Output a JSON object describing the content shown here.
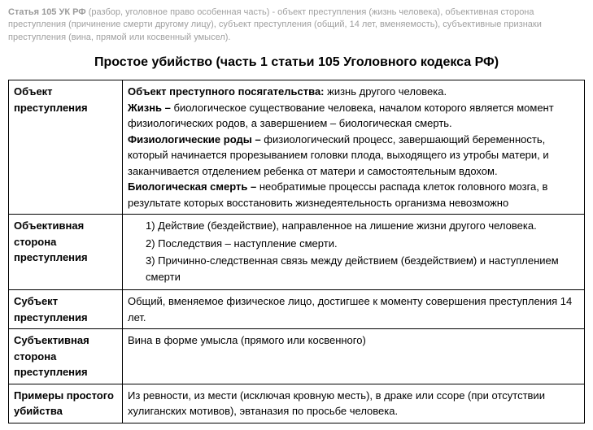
{
  "intro": {
    "lead_bold": "Статья 105 УК РФ",
    "lead_rest": " (разбор, уголовное право особенная часть) - объект преступления (жизнь человека), объективная сторона преступления (причинение смерти другому лицу), субъект преступления (общий, 14 лет, вменяемость), субъективные признаки преступления (вина, прямой или косвенный умысел)."
  },
  "title": "Простое убийство (часть 1 статьи 105 Уголовного кодекса РФ)",
  "rows": [
    {
      "label": "Объект преступления",
      "defs": [
        {
          "term": "Объект преступного посягательства:",
          "text": " жизнь другого человека."
        },
        {
          "term": "Жизнь –",
          "text": " биологическое существование человека, началом которого является момент физиологических родов, а завершением – биологическая смерть."
        },
        {
          "term": "Физиологические роды –",
          "text": " физиологический процесс, завершающий беременность, который начинается прорезыванием головки плода, выходящего из утробы матери, и заканчивается отделением ребенка от матери и самостоятельным вдохом."
        },
        {
          "term": "Биологическая смерть –",
          "text": " необратимые процессы распада клеток головного мозга, в результате которых восстановить жизнедеятельность организма невозможно"
        }
      ]
    },
    {
      "label": "Объективная сторона преступления",
      "list": [
        "Действие (бездействие), направленное на лишение жизни другого человека.",
        "Последствия – наступление смерти.",
        "Причинно-следственная связь между действием (бездействием) и наступлением смерти"
      ]
    },
    {
      "label": "Субъект преступления",
      "plain": "Общий, вменяемое физическое лицо, достигшее к моменту совершения преступления 14 лет."
    },
    {
      "label": "Субъективная сторона преступления",
      "plain": "Вина в форме умысла (прямого или косвенного)"
    },
    {
      "label": "Примеры простого убийства",
      "plain": "Из ревности, из мести (исключая кровную месть), в драке или ссоре (при отсутствии хулиганских мотивов), эвтаназия по просьбе человека."
    }
  ]
}
